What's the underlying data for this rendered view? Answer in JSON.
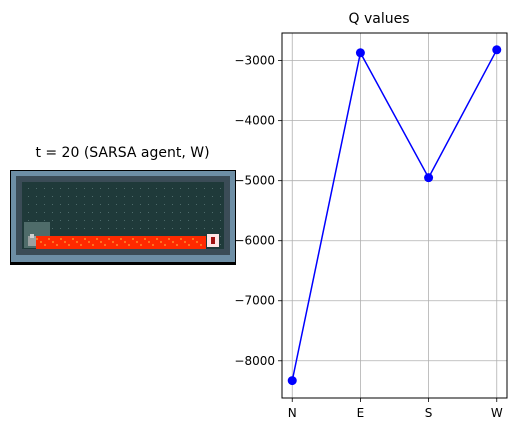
{
  "env_panel": {
    "title": "t = 20 (SARSA agent, W)",
    "colors": {
      "wall": "#6d8ea5",
      "wall_dark": "#3b4c57",
      "floor": "#1f3a3a",
      "lava": "#ff2a00",
      "lava_hi": "#ff8a2a",
      "start": "#4f6c6a"
    }
  },
  "chart_data": {
    "type": "line",
    "title": "Q values",
    "categories": [
      "N",
      "E",
      "S",
      "W"
    ],
    "series": [
      {
        "values": [
          -8330,
          -2870,
          -4950,
          -2820
        ],
        "color": "#0000ff",
        "marker": "circle"
      }
    ],
    "ylim": [
      -8620,
      -2540
    ],
    "yticks": [
      -8000,
      -7000,
      -6000,
      -5000,
      -4000,
      -3000
    ],
    "ytick_labels": [
      "−8000",
      "−7000",
      "−6000",
      "−5000",
      "−4000",
      "−3000"
    ],
    "grid": true,
    "xlabel": "",
    "ylabel": ""
  }
}
